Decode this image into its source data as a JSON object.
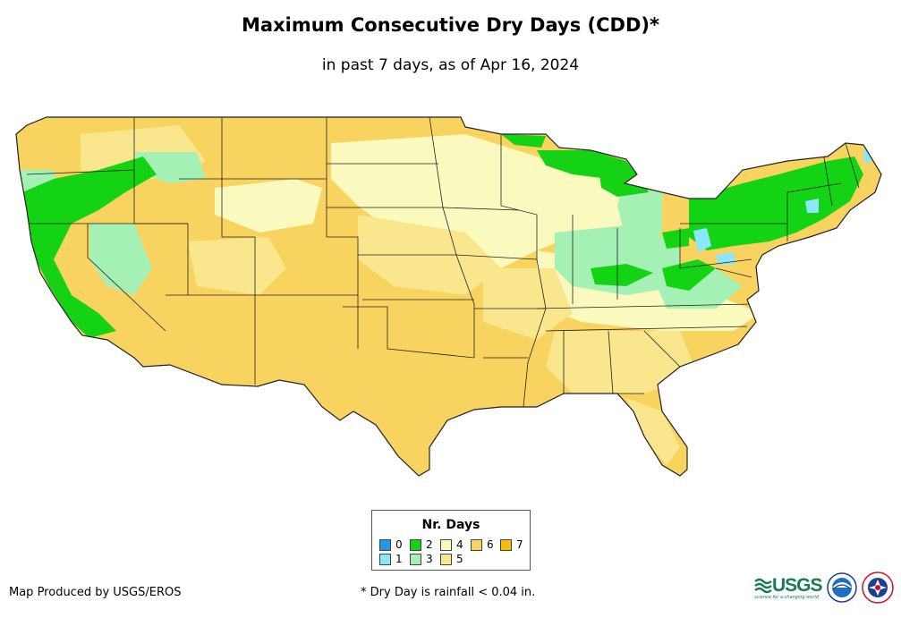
{
  "header": {
    "title": "Maximum Consecutive Dry Days (CDD)*",
    "subtitle": "in past 7 days, as of Apr 16, 2024"
  },
  "legend": {
    "title": "Nr. Days",
    "items": [
      {
        "label": "0",
        "color": "#1e9ae6"
      },
      {
        "label": "1",
        "color": "#8ce6ff"
      },
      {
        "label": "2",
        "color": "#14d214"
      },
      {
        "label": "3",
        "color": "#a5f0b4"
      },
      {
        "label": "4",
        "color": "#fafabe"
      },
      {
        "label": "5",
        "color": "#fae68c"
      },
      {
        "label": "6",
        "color": "#f9d35f"
      },
      {
        "label": "7",
        "color": "#f5be0a"
      }
    ]
  },
  "footer": {
    "credit": "Map Produced by USGS/EROS",
    "footnote": "* Dry Day is rainfall < 0.04 in.",
    "usgs_logo": "USGS",
    "usgs_tagline": "science for a changing world"
  },
  "logos": [
    "usgs-logo",
    "noaa-seal-icon",
    "nws-seal-icon"
  ]
}
